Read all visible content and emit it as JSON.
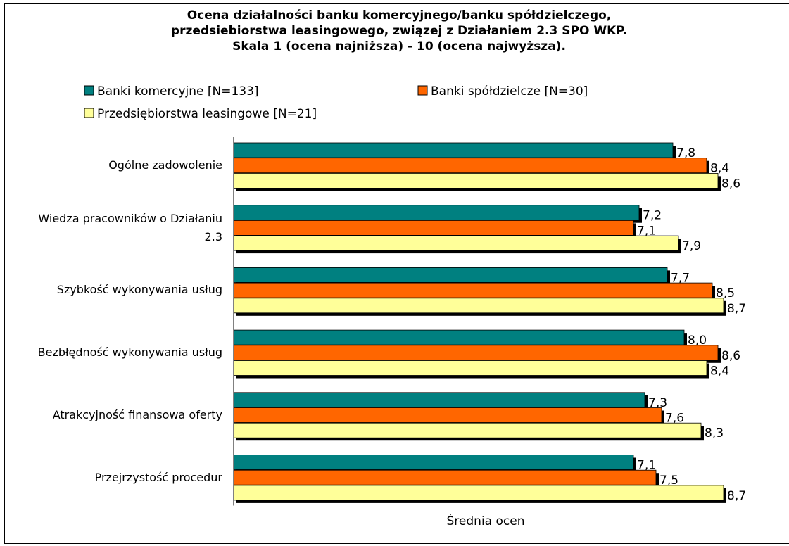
{
  "chart_data": {
    "type": "hbar",
    "title": [
      "Ocena działalności banku komercyjnego/banku spółdzielczego,",
      "przedsiebiorstwa leasingowego, związej z Działaniem 2.3 SPO WKP.",
      "Skala 1 (ocena najniższa) - 10 (ocena najwyższa)."
    ],
    "x_label": "Średnia ocen",
    "categories": [
      "Ogólne zadowolenie",
      "Wiedza pracowników o Działaniu 2.3",
      "Szybkość wykonywania usług",
      "Bezbłędność wykonywania usług",
      "Atrakcyjność finansowa oferty",
      "Przejrzystość procedur"
    ],
    "series": [
      {
        "name": "Banki komercyjne [N=133]",
        "color": "#008080",
        "values": [
          7.8,
          7.2,
          7.7,
          8.0,
          7.3,
          7.1
        ],
        "value_labels": [
          "7,8",
          "7,2",
          "7,7",
          "8,0",
          "7,3",
          "7,1"
        ]
      },
      {
        "name": "Banki spółdzielcze [N=30]",
        "color": "#ff6600",
        "values": [
          8.4,
          7.1,
          8.5,
          8.6,
          7.6,
          7.5
        ],
        "value_labels": [
          "8,4",
          "7,1",
          "8,5",
          "8,6",
          "7,6",
          "7,5"
        ]
      },
      {
        "name": "Przedsiębiorstwa leasingowe [N=21]",
        "color": "#ffff99",
        "values": [
          8.6,
          7.9,
          8.7,
          8.4,
          8.3,
          8.7
        ],
        "value_labels": [
          "8,6",
          "7,9",
          "8,7",
          "8,4",
          "8,3",
          "8,7"
        ]
      }
    ],
    "xlim": [
      0,
      9.7
    ]
  }
}
